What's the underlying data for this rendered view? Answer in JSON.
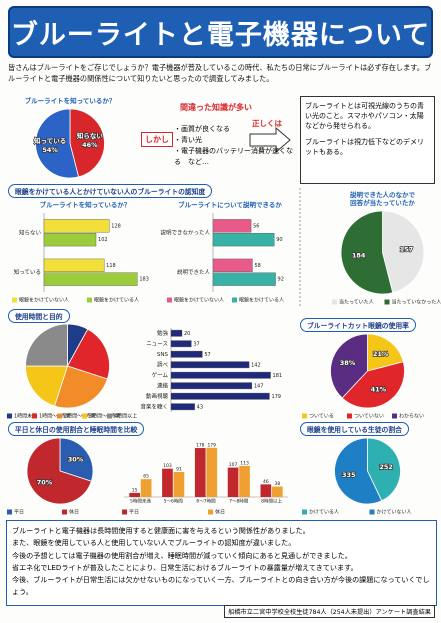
{
  "header": {
    "title": "ブルーライトと電子機器について"
  },
  "intro": "皆さんはブルーライトをご存じでしょうか？電子機器が普及しているこの時代、私たちの日常にブルーライトは必ず存在します。ブルーライトと電子機器の関係性について知りたいと思ったので調査してみました。",
  "knowledge": {
    "headline": "間違った知識が多い",
    "but": "しかし",
    "items": [
      "・画質が良くなる",
      "・青い光",
      "・電子機器のバッテリー消費が速くなる　など…"
    ],
    "correct": "正しくは"
  },
  "fact_box": [
    "ブルーライトとは可視光線のうちの青い光のこと。スマホやパソコン・太陽などから発せられる。",
    "ブルーライトは視力低下などのデメリットもある。"
  ],
  "sections": [
    "眼鏡をかけている人とかけていない人のブルーライトの認知度",
    "使用時間と目的",
    "ブルーライトカット眼鏡の使用率",
    "平日と休日の使用割合と睡眠時間を比較",
    "眼鏡を使用している生徒の割合"
  ],
  "chart_data": [
    {
      "type": "pie",
      "title": "ブルーライトを知っているか？",
      "categories": [
        "知らない",
        "知っている"
      ],
      "values": [
        46,
        54
      ],
      "value_labels": [
        "46%",
        "54%"
      ],
      "colors": [
        "#d9262b",
        "#2b63c6"
      ],
      "slice_labels": true
    },
    {
      "type": "hbar",
      "title": "ブルーライトを知っているか？",
      "categories": [
        "知らない",
        "知っている"
      ],
      "series": [
        {
          "name": "眼鏡をかけていない人",
          "color": "#f2df3a",
          "values": [
            128,
            118
          ]
        },
        {
          "name": "眼鏡をかけている人",
          "color": "#9ccc3c",
          "values": [
            102,
            183
          ]
        }
      ],
      "xlim": [
        0,
        200
      ],
      "legend": "bottom"
    },
    {
      "type": "hbar",
      "title": "ブルーライトについて説明できるか",
      "categories": [
        "説明できなかった人",
        "説明できた人"
      ],
      "series": [
        {
          "name": "眼鏡をかけていない人",
          "color": "#e85a8a",
          "values": [
            56,
            58
          ]
        },
        {
          "name": "眼鏡をかけている人",
          "color": "#38b2a4",
          "values": [
            90,
            92
          ]
        }
      ],
      "xlim": [
        0,
        100
      ],
      "legend": "bottom"
    },
    {
      "type": "pie",
      "title": [
        "説明できた人のなかで",
        "回答が当たっていたか"
      ],
      "categories": [
        "当たっていた人",
        "当たっていなかった人"
      ],
      "values": [
        157,
        184
      ],
      "colors": [
        "#e6e6e6",
        "#2e6e35"
      ],
      "legend": "bottom"
    },
    {
      "type": "pie",
      "categories": [
        "1時間未満",
        "1時間〜2時間",
        "2時間〜3時間",
        "3時間〜4時間",
        "4時間以上"
      ],
      "values": [
        8,
        22,
        25,
        20,
        25
      ],
      "colors": [
        "#1f3c88",
        "#e0262b",
        "#f28c28",
        "#f5c518",
        "#8a8a8a"
      ],
      "labels": false,
      "legend": "bottom"
    },
    {
      "type": "hbar",
      "categories": [
        "勉強",
        "ニュース",
        "SNS",
        "調べ",
        "ゲーム",
        "連絡",
        "動画視聴",
        "音楽を聴く"
      ],
      "values": [
        20,
        37,
        57,
        142,
        181,
        147,
        179,
        43
      ],
      "color": "#1f2a7a",
      "xlim": [
        0,
        200
      ]
    },
    {
      "type": "pie",
      "categories": [
        "ついている",
        "ついていない",
        "わからない"
      ],
      "values": [
        21,
        41,
        38
      ],
      "value_labels": [
        "21%",
        "41%",
        "38%"
      ],
      "colors": [
        "#f5c518",
        "#e0262b",
        "#5a2d82"
      ],
      "legend": "bottom"
    },
    {
      "type": "pie",
      "categories": [
        "平日",
        "休日"
      ],
      "values": [
        30,
        70
      ],
      "value_labels": [
        "30%",
        "70%"
      ],
      "colors": [
        "#2a5db0",
        "#c0282e"
      ],
      "legend": "bottom"
    },
    {
      "type": "vbar",
      "categories": [
        "5時間未満",
        "5〜6時間",
        "6〜7時間",
        "7〜8時間",
        "8時間以上"
      ],
      "series": [
        {
          "name": "平日",
          "color": "#c0282e",
          "values": [
            15,
            103,
            178,
            107,
            46
          ]
        },
        {
          "name": "休日",
          "color": "#f0a030",
          "values": [
            65,
            91,
            179,
            113,
            38
          ]
        }
      ],
      "ylim": [
        0,
        200
      ],
      "legend": "bottom"
    },
    {
      "type": "pie",
      "categories": [
        "かけている人",
        "かけていない人"
      ],
      "values": [
        252,
        335
      ],
      "colors": [
        "#2fb0b0",
        "#1f7fc4"
      ],
      "legend": "bottom"
    }
  ],
  "conclusion": [
    "ブルーライトと電子機器は長時間使用すると健康面に害を与えるという関係性がありました。",
    "また、眼鏡を使用している人と使用していない人でブルーライトの認知度が違いました。",
    "今後の予想としては電子機器の使用割合が増え、睡眠時間が減っていく傾向にあると見通しができました。",
    "省エネ化でLEDライトが普及したことにより、日常生活におけるブルーライトの暴露量が増えてきています。",
    "今後、ブルーライトが日常生活には欠かせないものになっていく一方、ブルーライトとの向き合い方が今後の課題になっていくでしょう。"
  ],
  "footer": "船橋市立二宮中学校全校生徒784人（254人未提出）アンケート調査結果"
}
